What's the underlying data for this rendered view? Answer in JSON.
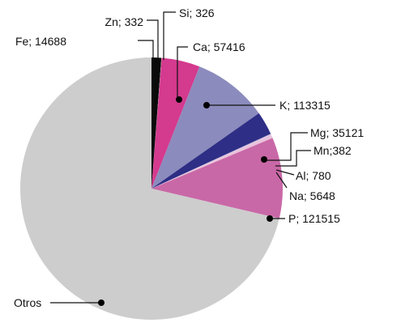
{
  "chart_data": {
    "type": "pie",
    "title": "",
    "slices": [
      {
        "label": "Fe",
        "value": 14688,
        "text": "Fe; 14688",
        "color": "#0a0a0a"
      },
      {
        "label": "Zn",
        "value": 332,
        "text": "Zn; 332",
        "color": "#d9d9d9"
      },
      {
        "label": "Si",
        "value": 326,
        "text": "Si; 326",
        "color": "#8a1d55"
      },
      {
        "label": "Ca",
        "value": 57416,
        "text": "Ca; 57416",
        "color": "#d43a8e"
      },
      {
        "label": "K",
        "value": 113315,
        "text": "K; 113315",
        "color": "#8b8bbd"
      },
      {
        "label": "Mg",
        "value": 35121,
        "text": "Mg; 35121",
        "color": "#2e2e86"
      },
      {
        "label": "Mn",
        "value": 382,
        "text": "Mn;382",
        "color": "#6b6bb0"
      },
      {
        "label": "Al",
        "value": 780,
        "text": "Al; 780",
        "color": "#c9c9e6"
      },
      {
        "label": "Na",
        "value": 5648,
        "text": "Na; 5648",
        "color": "#e9c3dc"
      },
      {
        "label": "P",
        "value": 121515,
        "text": "P; 121515",
        "color": "#c968a7"
      },
      {
        "label": "Otros",
        "value": 870000,
        "text": "Otros",
        "color": "#cdcdcd"
      }
    ]
  }
}
